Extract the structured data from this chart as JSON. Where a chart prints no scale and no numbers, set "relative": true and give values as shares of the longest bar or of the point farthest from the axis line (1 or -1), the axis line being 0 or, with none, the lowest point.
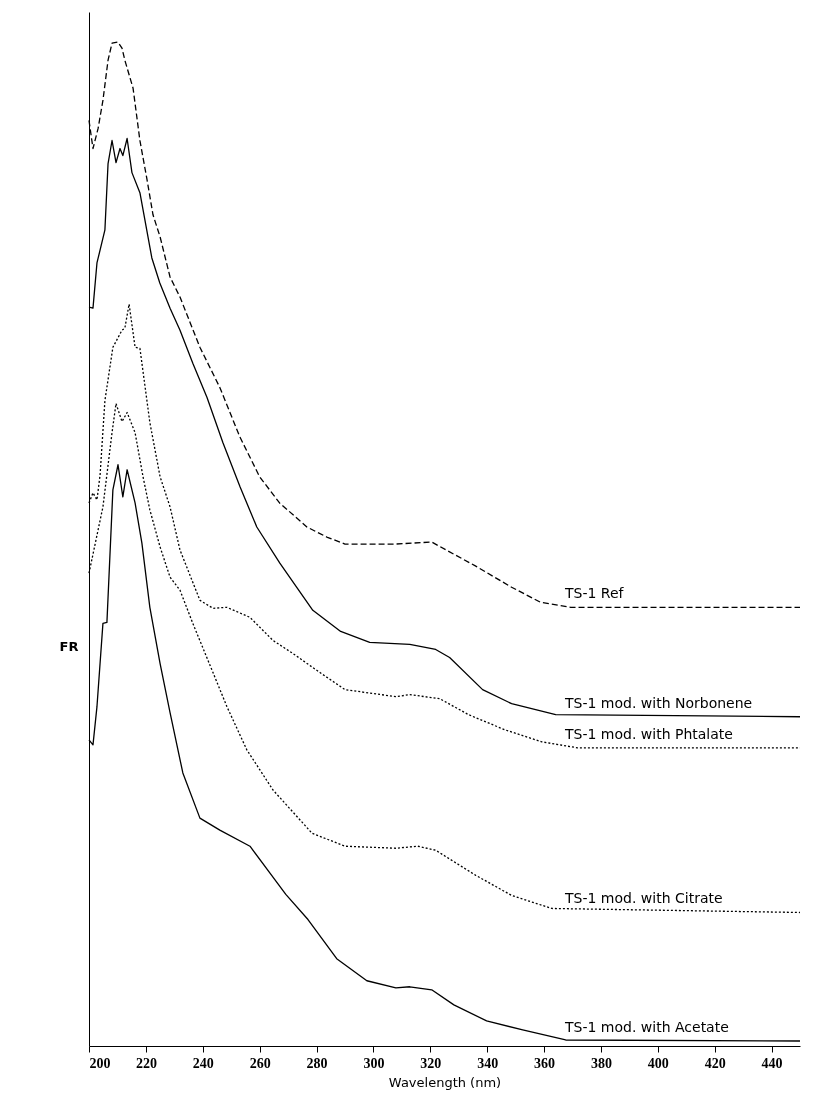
{
  "chart_data": {
    "type": "line",
    "xlabel": "Wavelength (nm)",
    "ylabel": "FR",
    "relative": true,
    "xlim": [
      200,
      450
    ],
    "xticks": [
      200,
      220,
      240,
      260,
      280,
      300,
      320,
      340,
      360,
      380,
      400,
      420,
      440
    ],
    "grid": false,
    "legend": false,
    "marker": "none",
    "series": [
      {
        "name": "TS-1 Ref",
        "color": "#000000",
        "line_style": "dashed",
        "x": [
          200,
          201.4,
          203.2,
          204.9,
          206.7,
          208.1,
          210.2,
          211.6,
          212.6,
          215.5,
          217.9,
          220.4,
          222.5,
          225,
          228.5,
          232,
          235.5,
          239,
          246,
          253,
          260,
          267,
          276.6,
          283.6,
          290,
          307.9,
          320.5,
          336,
          348.6,
          358.8,
          369.4,
          450
        ],
        "values": [
          0.922,
          0.894,
          0.914,
          0.942,
          0.982,
          0.999,
          1.0,
          0.994,
          0.982,
          0.954,
          0.902,
          0.863,
          0.828,
          0.806,
          0.766,
          0.746,
          0.721,
          0.696,
          0.656,
          0.607,
          0.567,
          0.541,
          0.517,
          0.507,
          0.5,
          0.5,
          0.502,
          0.478,
          0.457,
          0.442,
          0.437,
          0.437
        ]
      },
      {
        "name": "TS-1 mod. with Norbonene",
        "color": "#000000",
        "line_style": "solid",
        "x": [
          200,
          201.4,
          202.8,
          205.6,
          206.7,
          208.1,
          209.5,
          210.9,
          211.9,
          213.4,
          215.1,
          217.9,
          222.1,
          224.9,
          228.5,
          232,
          236.5,
          241.5,
          247.1,
          253.1,
          259,
          267.1,
          278.7,
          288.5,
          298.7,
          312.8,
          321.9,
          326.8,
          338.4,
          348.6,
          364.1,
          450
        ],
        "values": [
          0.736,
          0.735,
          0.78,
          0.813,
          0.879,
          0.902,
          0.88,
          0.894,
          0.887,
          0.904,
          0.87,
          0.85,
          0.785,
          0.76,
          0.735,
          0.713,
          0.68,
          0.646,
          0.601,
          0.557,
          0.517,
          0.481,
          0.434,
          0.413,
          0.402,
          0.4,
          0.395,
          0.387,
          0.355,
          0.341,
          0.33,
          0.328
        ]
      },
      {
        "name": "TS-1 mod. with Phtalate",
        "color": "#000000",
        "line_style": "dotted",
        "x": [
          200,
          201.4,
          202.8,
          203.9,
          205.6,
          208.4,
          211.6,
          212.6,
          214.1,
          216.2,
          217.9,
          221.4,
          225,
          228.5,
          232,
          239,
          243.6,
          248.5,
          256.6,
          264.7,
          271.7,
          281.2,
          290,
          307.9,
          312.8,
          323.3,
          333.5,
          346.2,
          359.2,
          371.8,
          450
        ],
        "values": [
          0.541,
          0.551,
          0.544,
          0.569,
          0.643,
          0.696,
          0.713,
          0.715,
          0.739,
          0.696,
          0.695,
          0.621,
          0.567,
          0.537,
          0.494,
          0.444,
          0.436,
          0.437,
          0.427,
          0.404,
          0.391,
          0.372,
          0.355,
          0.348,
          0.35,
          0.346,
          0.33,
          0.315,
          0.303,
          0.297,
          0.297
        ]
      },
      {
        "name": "TS-1 mod. with Citrate",
        "color": "#000000",
        "line_style": "dotted",
        "x": [
          200,
          204.9,
          208.1,
          209.5,
          211.6,
          213.4,
          216.2,
          219,
          221.4,
          225,
          228.5,
          232,
          236.5,
          243.6,
          248.5,
          255.5,
          264.7,
          278.4,
          290,
          307.9,
          315.6,
          321.9,
          336,
          348.6,
          362.7,
          450
        ],
        "values": [
          0.471,
          0.537,
          0.611,
          0.64,
          0.622,
          0.631,
          0.611,
          0.567,
          0.534,
          0.497,
          0.467,
          0.454,
          0.421,
          0.372,
          0.338,
          0.295,
          0.255,
          0.212,
          0.199,
          0.197,
          0.199,
          0.195,
          0.17,
          0.15,
          0.137,
          0.133
        ]
      },
      {
        "name": "TS-1 mod. with Acetate",
        "color": "#000000",
        "line_style": "solid",
        "x": [
          200,
          201.4,
          202.8,
          204.9,
          206.3,
          208.4,
          210.2,
          211.9,
          213.4,
          216.2,
          218.6,
          221.4,
          225,
          228.5,
          233,
          239,
          246,
          256.6,
          269.2,
          277,
          287.1,
          297.7,
          307.9,
          312.8,
          320.5,
          328.3,
          339.8,
          352.5,
          367.6,
          450
        ],
        "values": [
          0.305,
          0.3,
          0.338,
          0.421,
          0.422,
          0.554,
          0.579,
          0.547,
          0.574,
          0.541,
          0.501,
          0.437,
          0.381,
          0.332,
          0.272,
          0.227,
          0.215,
          0.199,
          0.151,
          0.126,
          0.087,
          0.065,
          0.058,
          0.059,
          0.056,
          0.041,
          0.025,
          0.016,
          0.006,
          0.005
        ]
      }
    ]
  }
}
